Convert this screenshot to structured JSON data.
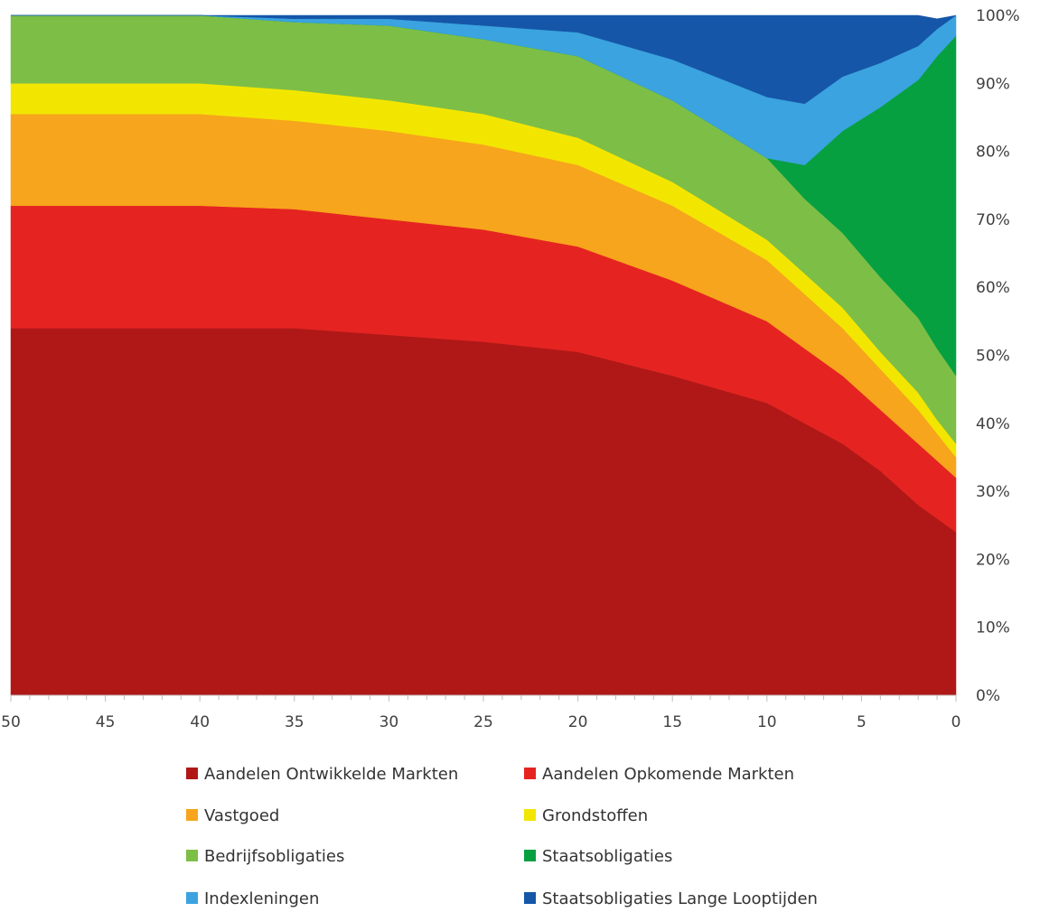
{
  "chart_data": {
    "type": "area",
    "stacked": true,
    "title": "",
    "xlabel": "",
    "ylabel": "",
    "x_reversed": true,
    "xlim": [
      50,
      0
    ],
    "ylim": [
      0,
      100
    ],
    "x_ticks": [
      "50",
      "45",
      "40",
      "35",
      "30",
      "25",
      "20",
      "15",
      "10",
      "5",
      "0"
    ],
    "x_tick_values": [
      50,
      45,
      40,
      35,
      30,
      25,
      20,
      15,
      10,
      5,
      0
    ],
    "y_ticks": [
      "0%",
      "10%",
      "20%",
      "30%",
      "40%",
      "50%",
      "60%",
      "70%",
      "80%",
      "90%",
      "100%"
    ],
    "y_tick_values": [
      0,
      10,
      20,
      30,
      40,
      50,
      60,
      70,
      80,
      90,
      100
    ],
    "y_axis_position": "right",
    "grid": false,
    "legend_position": "bottom",
    "x": [
      50,
      45,
      40,
      35,
      30,
      25,
      20,
      15,
      10,
      8,
      6,
      4,
      2,
      1,
      0
    ],
    "series": [
      {
        "name": "Aandelen Ontwikkelde Markten",
        "color": "#B01817",
        "values": [
          54,
          54,
          54,
          54,
          53,
          52,
          50.5,
          47,
          43,
          40,
          37,
          33,
          28,
          26,
          24
        ]
      },
      {
        "name": "Aandelen Opkomende Markten",
        "color": "#E52421",
        "values": [
          18,
          18,
          18,
          17.5,
          17,
          16.5,
          15.5,
          14,
          12,
          11,
          10,
          9,
          9,
          8.5,
          8
        ]
      },
      {
        "name": "Vastgoed",
        "color": "#F7A51C",
        "values": [
          13.5,
          13.5,
          13.5,
          13,
          13,
          12.5,
          12,
          11,
          9,
          8,
          7,
          6,
          5,
          4,
          3
        ]
      },
      {
        "name": "Grondstoffen",
        "color": "#F2E600",
        "values": [
          4.5,
          4.5,
          4.5,
          4.5,
          4.5,
          4.5,
          4,
          3.5,
          3,
          3,
          3,
          2.5,
          2.5,
          2,
          2
        ]
      },
      {
        "name": "Bedrijfsobligaties",
        "color": "#7DBE47",
        "values": [
          10,
          10,
          10,
          10,
          11,
          11,
          12,
          12,
          12,
          11,
          11,
          11,
          11,
          10.5,
          10
        ]
      },
      {
        "name": "Staatsobligaties",
        "color": "#07A040",
        "values": [
          0,
          0,
          0,
          0,
          0,
          0,
          0,
          0,
          0,
          5,
          15,
          25,
          35,
          43,
          50
        ]
      },
      {
        "name": "Indexleningen",
        "color": "#3BA3DF",
        "values": [
          0,
          0,
          0,
          0.5,
          1,
          2,
          3.5,
          6,
          9,
          9,
          8,
          6.5,
          5,
          4,
          3
        ]
      },
      {
        "name": "Staatsobligaties Lange Looptijden",
        "color": "#1556A8",
        "values": [
          0,
          0,
          0,
          0.5,
          0.5,
          1.5,
          2.5,
          6.5,
          12,
          13,
          9,
          7,
          4.5,
          1.5,
          0
        ]
      }
    ]
  }
}
